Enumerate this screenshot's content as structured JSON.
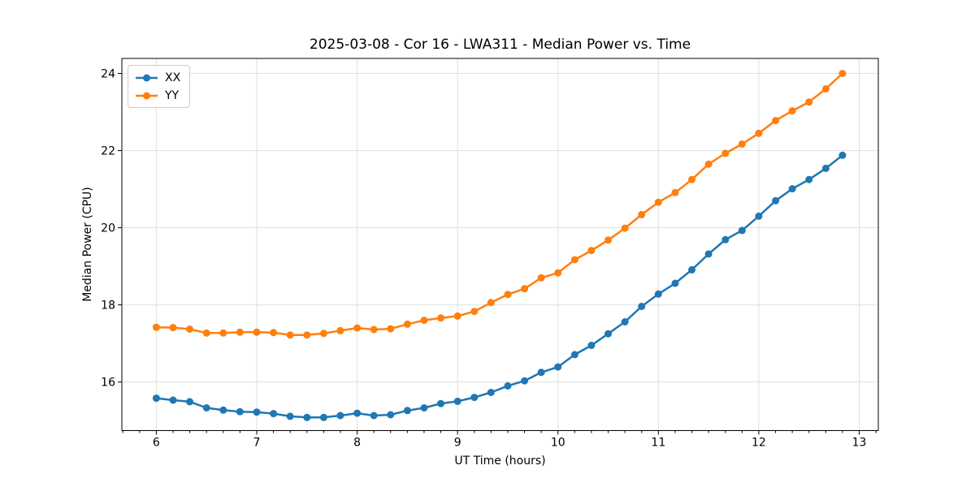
{
  "title": "2025-03-08 - Cor 16 - LWA311 - Median Power vs. Time",
  "chart_data": {
    "type": "line",
    "title": "2025-03-08 - Cor 16 - LWA311 - Median Power vs. Time",
    "xlabel": "UT Time (hours)",
    "ylabel": "Median Power (CPU)",
    "xlim": [
      5.657,
      13.19
    ],
    "ylim": [
      14.74,
      24.39
    ],
    "x_major_ticks": [
      6,
      7,
      8,
      9,
      10,
      11,
      12,
      13
    ],
    "x_minor_ticks_per_hour": 6,
    "y_major_ticks": [
      16,
      18,
      20,
      22,
      24
    ],
    "grid": true,
    "grid_color": "#e0e0e0",
    "legend": {
      "position": "upper-left",
      "entries": [
        {
          "label": "XX",
          "color": "#1f77b4"
        },
        {
          "label": "YY",
          "color": "#ff7f0e"
        }
      ]
    },
    "x": [
      6.0,
      6.167,
      6.333,
      6.5,
      6.667,
      6.833,
      7.0,
      7.167,
      7.333,
      7.5,
      7.667,
      7.833,
      8.0,
      8.167,
      8.333,
      8.5,
      8.667,
      8.833,
      9.0,
      9.167,
      9.333,
      9.5,
      9.667,
      9.833,
      10.0,
      10.167,
      10.333,
      10.5,
      10.667,
      10.833,
      11.0,
      11.167,
      11.333,
      11.5,
      11.667,
      11.833,
      12.0,
      12.167,
      12.333,
      12.5,
      12.667,
      12.833
    ],
    "series": [
      {
        "name": "XX",
        "color": "#1f77b4",
        "values": [
          15.58,
          15.53,
          15.49,
          15.33,
          15.27,
          15.23,
          15.22,
          15.18,
          15.11,
          15.08,
          15.08,
          15.13,
          15.19,
          15.13,
          15.15,
          15.26,
          15.33,
          15.44,
          15.5,
          15.6,
          15.73,
          15.9,
          16.03,
          16.25,
          16.39,
          16.71,
          16.95,
          17.25,
          17.56,
          17.96,
          18.28,
          18.56,
          18.91,
          19.32,
          19.69,
          19.93,
          20.3,
          20.7,
          21.01,
          21.25,
          21.54,
          21.88
        ]
      },
      {
        "name": "YY",
        "color": "#ff7f0e",
        "values": [
          17.42,
          17.41,
          17.37,
          17.27,
          17.27,
          17.29,
          17.29,
          17.28,
          17.22,
          17.22,
          17.26,
          17.33,
          17.4,
          17.36,
          17.38,
          17.5,
          17.6,
          17.66,
          17.71,
          17.83,
          18.06,
          18.27,
          18.42,
          18.7,
          18.83,
          19.17,
          19.41,
          19.68,
          19.99,
          20.34,
          20.66,
          20.91,
          21.25,
          21.65,
          21.93,
          22.17,
          22.45,
          22.78,
          23.03,
          23.26,
          23.6,
          24.0
        ]
      }
    ]
  }
}
